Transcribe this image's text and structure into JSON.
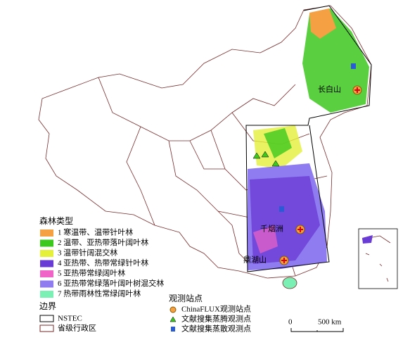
{
  "map": {
    "site_labels": [
      "长白山",
      "千烟洲",
      "鼎湖山"
    ]
  },
  "forest_legend": {
    "title": "森林类型",
    "items": [
      {
        "label": "1 寒温带、温带针叶林",
        "color": "#f5a043"
      },
      {
        "label": "2 温带、亚热带落叶阔叶林",
        "color": "#3dc81e"
      },
      {
        "label": "3 温带针阔混交林",
        "color": "#e4f03a"
      },
      {
        "label": "4 亚热带、热带常绿针叶林",
        "color": "#6a3cd6"
      },
      {
        "label": "5 亚热带常绿阔叶林",
        "color": "#f064c8"
      },
      {
        "label": "6 亚热带常绿落叶阔叶树混交林",
        "color": "#8f7cf0"
      },
      {
        "label": "7 热带雨林性常绿阔叶林",
        "color": "#7bf0b4"
      }
    ]
  },
  "boundary_legend": {
    "title": "边界",
    "items": [
      "NSTEC",
      "省级行政区"
    ]
  },
  "site_legend": {
    "title": "观测站点",
    "items": [
      "ChinaFLUX观测站点",
      "文献搜集蒸腾观测点",
      "文献搜集蒸散观测点"
    ]
  },
  "scale": {
    "labels": [
      "0",
      "500 km"
    ]
  }
}
